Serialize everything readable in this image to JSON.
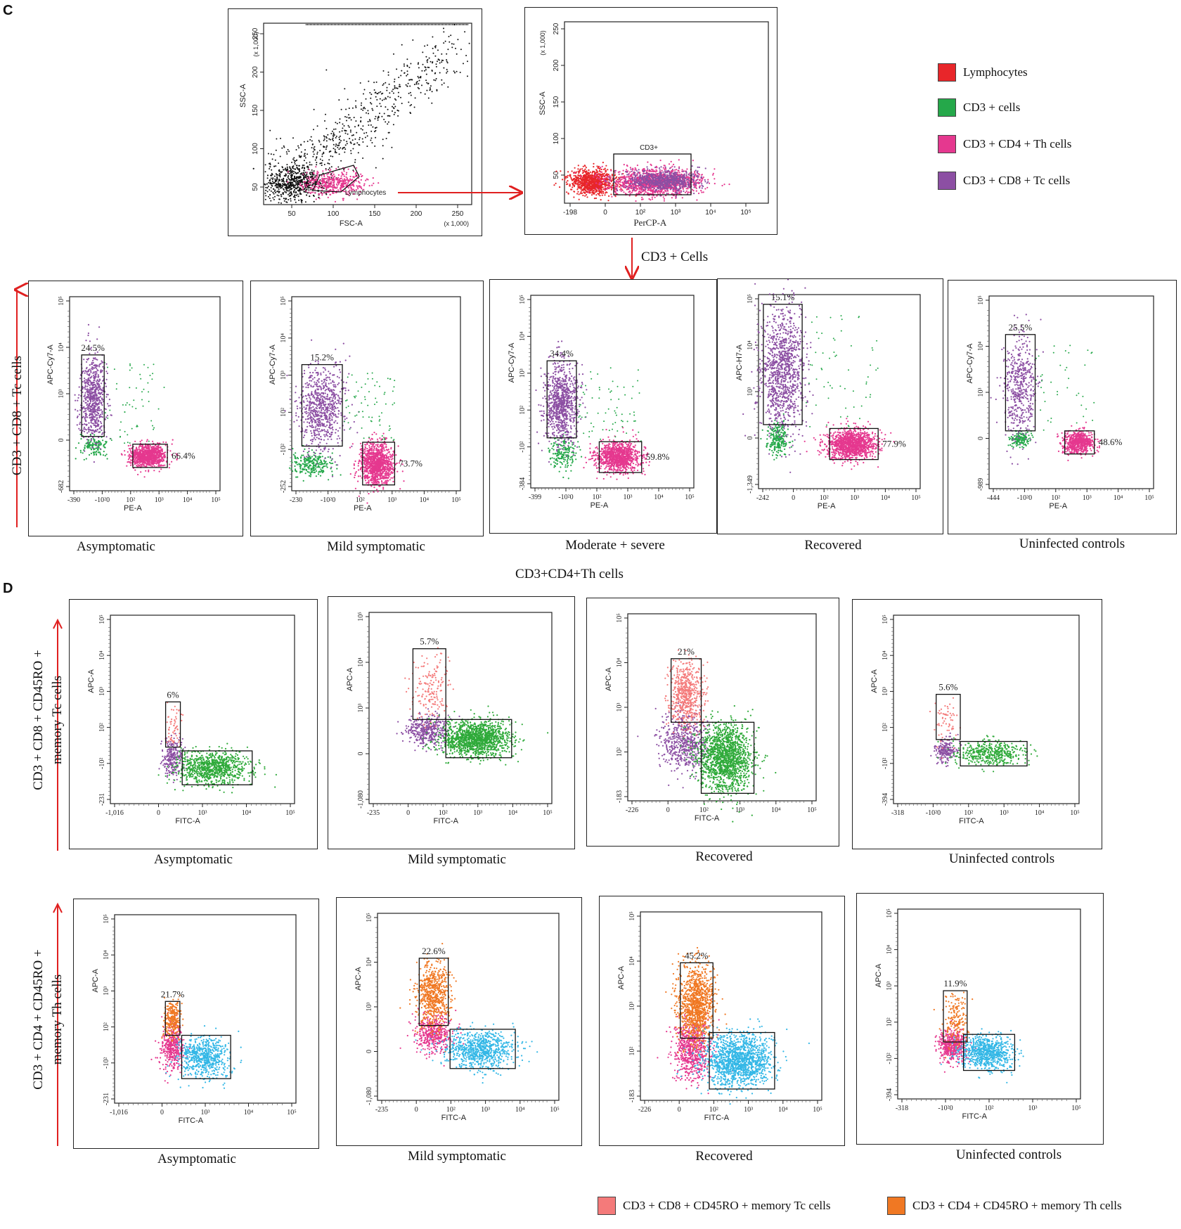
{
  "section_c_label": "C",
  "section_d_label": "D",
  "colors": {
    "lymph": "#e8262a",
    "cd3": "#25a84a",
    "th": "#e5388f",
    "tc": "#8c4fa3",
    "mem_tc": "#f47a7a",
    "mem_th": "#f07823",
    "fitc_cd8": "#2faa3a",
    "fitc_cd4": "#33b7e6",
    "black": "#111111"
  },
  "legend_c": [
    {
      "label": "Lymphocytes",
      "color": "#e8262a"
    },
    {
      "label": "CD3 + cells",
      "color": "#25a84a"
    },
    {
      "label": "CD3 + CD4 + Th cells",
      "color": "#e5388f"
    },
    {
      "label": "CD3 + CD8 + Tc cells",
      "color": "#8c4fa3"
    }
  ],
  "legend_d": [
    {
      "label": "CD3 + CD8 + CD45RO + memory Tc cells",
      "color": "#f47a7a"
    },
    {
      "label": "CD3 + CD4 + CD45RO + memory Th cells",
      "color": "#f07823"
    }
  ],
  "annotations": {
    "cd3_cells": "CD3 + Cells",
    "cd4_th_header": "CD3+CD4+Th cells",
    "row_c_axis": "CD3 + CD8 + Tc cells",
    "row_d1_axis_l1": "CD3 + CD8 + CD45RO +",
    "row_d1_axis_l2": "memory Tc cells",
    "row_d2_axis_l1": "CD3 + CD4 + CD45RO +",
    "row_d2_axis_l2": "memory Th cells"
  },
  "chart_data": [
    {
      "id": "gating-fsc-ssc",
      "type": "scatter",
      "xlabel": "FSC-A",
      "ylabel": "SSC-A",
      "x_ticks": [
        "50",
        "100",
        "150",
        "200",
        "250"
      ],
      "y_ticks": [
        "50",
        "100",
        "150",
        "200",
        "250"
      ],
      "x_scale_note": "(x 1,000)",
      "y_scale_note": "(x 1,000)",
      "gate_label": "Lymphocytes"
    },
    {
      "id": "gating-percp-ssc",
      "type": "scatter",
      "xlabel": "PerCP-A",
      "ylabel": "SSC-A",
      "x_ticks": [
        "-198",
        "0",
        "10²",
        "10³",
        "10⁴",
        "10⁵"
      ],
      "y_ticks": [
        "50",
        "100",
        "150",
        "200",
        "250"
      ],
      "y_scale_note": "(x 1,000)",
      "gate_label": "CD3+"
    },
    {
      "row": "C",
      "type": "scatter",
      "title": "Asymptomatic",
      "xlabel": "PE-A",
      "ylabel": "APC-Cy7-A",
      "x_ticks": [
        "-390",
        "-10²0",
        "10²",
        "10³",
        "10⁴",
        "10⁵"
      ],
      "y_ticks": [
        "-682",
        "0",
        "10³",
        "10⁴",
        "10⁵"
      ],
      "upper_gate_pct": "24.5%",
      "lower_gate_pct": "66.4%",
      "upper_color": "tc",
      "lower_color": "th",
      "mid_color": "cd3"
    },
    {
      "row": "C",
      "type": "scatter",
      "title": "Mild symptomatic",
      "xlabel": "PE-A",
      "ylabel": "APC-Cy7-A",
      "x_ticks": [
        "-230",
        "-10²0",
        "10²",
        "10³",
        "10⁴",
        "10⁵"
      ],
      "y_ticks": [
        "-252",
        "-10²",
        "10²",
        "10³",
        "10⁴",
        "10⁵"
      ],
      "upper_gate_pct": "15.2%",
      "lower_gate_pct": "73.7%",
      "upper_color": "tc",
      "lower_color": "th",
      "mid_color": "cd3"
    },
    {
      "row": "C",
      "type": "scatter",
      "title": "Moderate + severe",
      "xlabel": "PE-A",
      "ylabel": "APC-Cy7-A",
      "x_ticks": [
        "-399",
        "-10²0",
        "10²",
        "10³",
        "10⁴",
        "10⁵"
      ],
      "y_ticks": [
        "-384",
        "-10²",
        "10²",
        "10³",
        "10⁴",
        "10⁵"
      ],
      "upper_gate_pct": "34.4%",
      "lower_gate_pct": "59.8%",
      "upper_color": "tc",
      "lower_color": "th",
      "mid_color": "cd3"
    },
    {
      "row": "C",
      "type": "scatter",
      "title": "Recovered",
      "xlabel": "PE-A",
      "ylabel": "APC-H7-A",
      "x_ticks": [
        "-242",
        "0",
        "10²",
        "10³",
        "10⁴",
        "10⁵"
      ],
      "y_ticks": [
        "-1,349",
        "0",
        "10³",
        "10⁴",
        "10⁵"
      ],
      "upper_gate_pct": "15.1%",
      "lower_gate_pct": "77.9%",
      "upper_color": "tc",
      "lower_color": "th",
      "mid_color": "cd3"
    },
    {
      "row": "C",
      "type": "scatter",
      "title": "Uninfected controls",
      "xlabel": "PE-A",
      "ylabel": "APC-Cy7-A",
      "x_ticks": [
        "-444",
        "-10²0",
        "10²",
        "10³",
        "10⁴",
        "10⁵"
      ],
      "y_ticks": [
        "-989",
        "0",
        "10³",
        "10⁴",
        "10⁵"
      ],
      "upper_gate_pct": "25.5%",
      "lower_gate_pct": "48.6%",
      "upper_color": "tc",
      "lower_color": "th",
      "mid_color": "cd3"
    },
    {
      "row": "D1",
      "type": "scatter",
      "title": "Asymptomatic",
      "xlabel": "FITC-A",
      "ylabel": "APC-A",
      "x_ticks": [
        "-1,016",
        "0",
        "10³",
        "10⁴",
        "10⁵"
      ],
      "y_ticks": [
        "-231",
        "-10²",
        "10²",
        "10³",
        "10⁴",
        "10⁵"
      ],
      "upper_gate_pct": "6%",
      "upper_color": "mem_tc",
      "mid_color": "tc",
      "lower_color": "fitc_cd8"
    },
    {
      "row": "D1",
      "type": "scatter",
      "title": "Mild symptomatic",
      "xlabel": "FITC-A",
      "ylabel": "APC-A",
      "x_ticks": [
        "-235",
        "0",
        "10²",
        "10³",
        "10⁴",
        "10⁵"
      ],
      "y_ticks": [
        "-1,080",
        "0",
        "10³",
        "10⁴",
        "10⁵"
      ],
      "upper_gate_pct": "5.7%",
      "upper_color": "mem_tc",
      "mid_color": "tc",
      "lower_color": "fitc_cd8"
    },
    {
      "row": "D1",
      "type": "scatter",
      "title": "Recovered",
      "xlabel": "FITC-A",
      "ylabel": "APC-A",
      "x_ticks": [
        "-226",
        "0",
        "10²",
        "10³",
        "10⁴",
        "10⁵"
      ],
      "y_ticks": [
        "-183",
        "10²",
        "10³",
        "10⁴",
        "10⁵"
      ],
      "upper_gate_pct": "21%",
      "upper_color": "mem_tc",
      "mid_color": "tc",
      "lower_color": "fitc_cd8"
    },
    {
      "row": "D1",
      "type": "scatter",
      "title": "Uninfected controls",
      "xlabel": "FITC-A",
      "ylabel": "APC-A",
      "x_ticks": [
        "-318",
        "-10²0",
        "10²",
        "10³",
        "10⁴",
        "10⁵"
      ],
      "y_ticks": [
        "-394",
        "-10²",
        "10²",
        "10³",
        "10⁴",
        "10⁵"
      ],
      "upper_gate_pct": "5.6%",
      "upper_color": "mem_tc",
      "mid_color": "tc",
      "lower_color": "fitc_cd8"
    },
    {
      "row": "D2",
      "type": "scatter",
      "title": "Asymptomatic",
      "xlabel": "FITC-A",
      "ylabel": "APC-A",
      "x_ticks": [
        "-1,016",
        "0",
        "10³",
        "10⁴",
        "10⁵"
      ],
      "y_ticks": [
        "-231",
        "-10²",
        "10²",
        "10³",
        "10⁴",
        "10⁵"
      ],
      "upper_gate_pct": "21.7%",
      "upper_color": "mem_th",
      "mid_color": "th",
      "lower_color": "fitc_cd4"
    },
    {
      "row": "D2",
      "type": "scatter",
      "title": "Mild symptomatic",
      "xlabel": "FITC-A",
      "ylabel": "APC-A",
      "x_ticks": [
        "-235",
        "0",
        "10²",
        "10³",
        "10⁴",
        "10⁵"
      ],
      "y_ticks": [
        "-1,080",
        "0",
        "10³",
        "10⁴",
        "10⁵"
      ],
      "upper_gate_pct": "22.6%",
      "upper_color": "mem_th",
      "mid_color": "th",
      "lower_color": "fitc_cd4"
    },
    {
      "row": "D2",
      "type": "scatter",
      "title": "Recovered",
      "xlabel": "FITC-A",
      "ylabel": "APC-A",
      "x_ticks": [
        "-226",
        "0",
        "10²",
        "10³",
        "10⁴",
        "10⁵"
      ],
      "y_ticks": [
        "-183",
        "10²",
        "10³",
        "10⁴",
        "10⁵"
      ],
      "upper_gate_pct": "45.2%",
      "upper_color": "mem_th",
      "mid_color": "th",
      "lower_color": "fitc_cd4"
    },
    {
      "row": "D2",
      "type": "scatter",
      "title": "Uninfected controls",
      "xlabel": "FITC-A",
      "ylabel": "APC-A",
      "x_ticks": [
        "-318",
        "-10²0",
        "10²",
        "10³",
        "10⁵"
      ],
      "y_ticks": [
        "-394",
        "-10²",
        "10²",
        "10³",
        "10⁴",
        "10⁵"
      ],
      "upper_gate_pct": "11.9%",
      "upper_color": "mem_th",
      "mid_color": "th",
      "lower_color": "fitc_cd4"
    }
  ]
}
